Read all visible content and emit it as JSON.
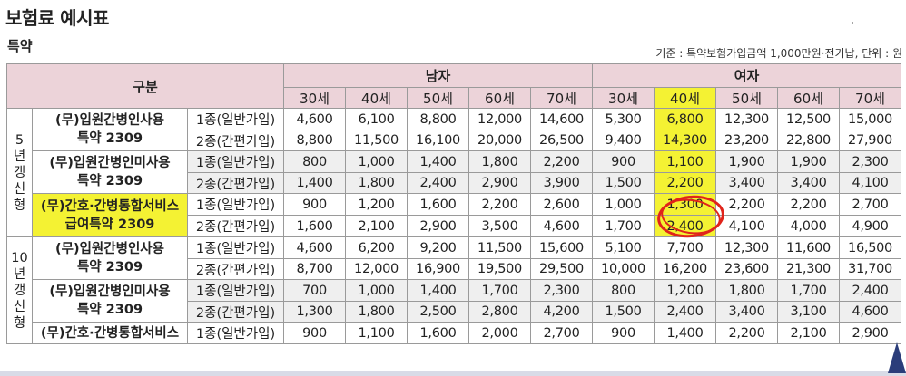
{
  "title": "보험료 예시표",
  "subtitle": "특약",
  "basis": "기준 : 특약보험가입금액 1,000만원·전기납, 단위 : 원",
  "header": {
    "category": "구분",
    "male": "남자",
    "female": "여자",
    "ages": [
      "30세",
      "40세",
      "50세",
      "60세",
      "70세"
    ]
  },
  "groups": [
    {
      "label_chars": [
        "5",
        "년",
        "갱",
        "신",
        "형"
      ],
      "products": [
        {
          "name_lines": [
            "(무)입원간병인사용",
            "특약 2309"
          ],
          "highlight": false,
          "rows": [
            {
              "kind": "1종(일반가입)",
              "values": [
                "4,600",
                "6,100",
                "8,800",
                "12,000",
                "14,600",
                "5,300",
                "6,800",
                "12,300",
                "12,500",
                "15,000"
              ]
            },
            {
              "kind": "2종(간편가입)",
              "values": [
                "8,800",
                "11,500",
                "16,100",
                "20,000",
                "26,500",
                "9,400",
                "14,300",
                "23,200",
                "22,800",
                "27,900"
              ]
            }
          ]
        },
        {
          "name_lines": [
            "(무)입원간병인미사용",
            "특약 2309"
          ],
          "highlight": false,
          "rows": [
            {
              "kind": "1종(일반가입)",
              "values": [
                "800",
                "1,000",
                "1,400",
                "1,800",
                "2,200",
                "900",
                "1,100",
                "1,900",
                "1,900",
                "2,300"
              ]
            },
            {
              "kind": "2종(간편가입)",
              "values": [
                "1,400",
                "1,800",
                "2,400",
                "2,900",
                "3,900",
                "1,500",
                "2,200",
                "3,400",
                "3,400",
                "4,100"
              ]
            }
          ]
        },
        {
          "name_lines": [
            "(무)간호·간병통합서비스",
            "급여특약 2309"
          ],
          "highlight": true,
          "rows": [
            {
              "kind": "1종(일반가입)",
              "values": [
                "900",
                "1,200",
                "1,600",
                "2,200",
                "2,600",
                "1,000",
                "1,300",
                "2,200",
                "2,200",
                "2,700"
              ]
            },
            {
              "kind": "2종(간편가입)",
              "values": [
                "1,600",
                "2,100",
                "2,900",
                "3,500",
                "4,600",
                "1,700",
                "2,400",
                "4,100",
                "4,000",
                "4,900"
              ]
            }
          ]
        }
      ]
    },
    {
      "label_chars": [
        "10",
        "년",
        "갱",
        "신",
        "형"
      ],
      "products": [
        {
          "name_lines": [
            "(무)입원간병인사용",
            "특약 2309"
          ],
          "highlight": false,
          "rows": [
            {
              "kind": "1종(일반가입)",
              "values": [
                "4,600",
                "6,200",
                "9,200",
                "11,500",
                "15,600",
                "5,100",
                "7,700",
                "12,300",
                "11,600",
                "16,500"
              ]
            },
            {
              "kind": "2종(간편가입)",
              "values": [
                "8,700",
                "12,000",
                "16,900",
                "19,500",
                "29,500",
                "10,000",
                "16,200",
                "23,600",
                "21,300",
                "31,700"
              ]
            }
          ]
        },
        {
          "name_lines": [
            "(무)입원간병인미사용",
            "특약 2309"
          ],
          "highlight": false,
          "rows": [
            {
              "kind": "1종(일반가입)",
              "values": [
                "700",
                "1,000",
                "1,400",
                "1,700",
                "2,300",
                "800",
                "1,200",
                "1,800",
                "1,700",
                "2,400"
              ]
            },
            {
              "kind": "2종(간편가입)",
              "values": [
                "1,300",
                "1,800",
                "2,500",
                "2,800",
                "4,200",
                "1,500",
                "2,400",
                "3,400",
                "3,100",
                "4,600"
              ]
            }
          ]
        },
        {
          "name_lines": [
            "(무)간호·간병통합서비스"
          ],
          "highlight": false,
          "rows": [
            {
              "kind": "1종(일반가입)",
              "values": [
                "900",
                "1,100",
                "1,600",
                "2,000",
                "2,700",
                "900",
                "1,400",
                "2,200",
                "2,100",
                "2,900"
              ]
            }
          ]
        }
      ]
    }
  ],
  "colors": {
    "header_bg": "#ecd3d9",
    "highlight": "#f4f233",
    "shade": "#efefef",
    "annotation_circle": "#e0241b"
  }
}
